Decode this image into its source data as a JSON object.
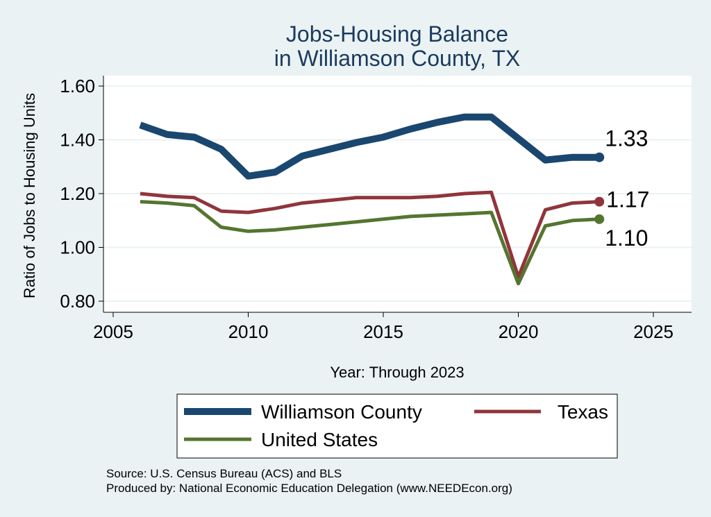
{
  "chart_data": {
    "type": "line",
    "title": [
      "Jobs-Housing Balance",
      "in Williamson County, TX"
    ],
    "xlabel": "Year: Through 2023",
    "ylabel": "Ratio of Jobs to Housing Units",
    "xlim": [
      2005,
      2025
    ],
    "ylim": [
      0.8,
      1.6
    ],
    "xticks": [
      2005,
      2010,
      2015,
      2020,
      2025
    ],
    "yticks": [
      0.8,
      1.0,
      1.2,
      1.4,
      1.6
    ],
    "ytick_labels": [
      "0.80",
      "1.00",
      "1.20",
      "1.40",
      "1.60"
    ],
    "grid": "horizontal",
    "x": [
      2006,
      2007,
      2008,
      2009,
      2010,
      2011,
      2012,
      2013,
      2014,
      2015,
      2016,
      2017,
      2018,
      2019,
      2020,
      2021,
      2022,
      2023
    ],
    "series": [
      {
        "name": "Williamson County",
        "color": "#1a476f",
        "values": [
          1.455,
          1.42,
          1.41,
          1.365,
          1.265,
          1.28,
          1.34,
          1.365,
          1.39,
          1.41,
          1.44,
          1.465,
          1.485,
          1.485,
          1.405,
          1.325,
          1.335,
          1.335
        ],
        "end_label": "1.33"
      },
      {
        "name": "Texas",
        "color": "#90353b",
        "values": [
          1.2,
          1.19,
          1.185,
          1.135,
          1.13,
          1.145,
          1.165,
          1.175,
          1.185,
          1.185,
          1.185,
          1.19,
          1.2,
          1.205,
          0.89,
          1.14,
          1.165,
          1.17
        ],
        "end_label": "1.17"
      },
      {
        "name": "United States",
        "color": "#55752f",
        "values": [
          1.17,
          1.165,
          1.155,
          1.075,
          1.06,
          1.065,
          1.075,
          1.085,
          1.095,
          1.105,
          1.115,
          1.12,
          1.125,
          1.13,
          0.865,
          1.08,
          1.1,
          1.105
        ],
        "end_label": "1.10"
      }
    ],
    "legend": {
      "placement": "bottom",
      "entries": [
        "Williamson County",
        "Texas",
        "United States"
      ]
    },
    "notes": [
      "Source: U.S. Census Bureau (ACS) and BLS",
      "Produced by: National Economic Education Delegation (www.NEEDEcon.org)"
    ]
  }
}
